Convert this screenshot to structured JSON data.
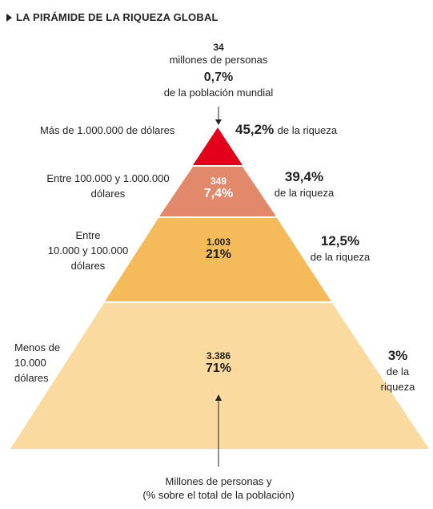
{
  "title": "LA PIRÁMIDE DE LA RIQUEZA GLOBAL",
  "top": {
    "count": "34",
    "count_unit": "millones de personas",
    "pct": "0,7%",
    "pct_desc": "de la población mundial"
  },
  "levels": [
    {
      "range": "Más de 1.000.000 de dólares",
      "people": "",
      "pop_pct": "",
      "wealth_pct": "45,2%",
      "wealth_desc": "de la riqueza",
      "color": "#e2001a"
    },
    {
      "range_line1": "Entre 100.000 y 1.000.000",
      "range_line2": "dólares",
      "people": "349",
      "pop_pct": "7,4%",
      "wealth_pct": "39,4%",
      "wealth_desc": "de la riqueza",
      "color": "#e3896b"
    },
    {
      "range_line1": "Entre",
      "range_line2": "10.000 y 100.000",
      "range_line3": "dólares",
      "people": "1.003",
      "pop_pct": "21%",
      "wealth_pct": "12,5%",
      "wealth_desc": "de la riqueza",
      "color": "#f5bb5a"
    },
    {
      "range_line1": "Menos de",
      "range_line2": "10.000",
      "range_line3": "dólares",
      "people": "3.386",
      "pop_pct": "71%",
      "wealth_pct": "3%",
      "wealth_desc1": "de la",
      "wealth_desc2": "riqueza",
      "color": "#fbdaa0"
    }
  ],
  "footer": {
    "line1": "Millones de personas y",
    "line2": "(% sobre el total de la población)"
  }
}
